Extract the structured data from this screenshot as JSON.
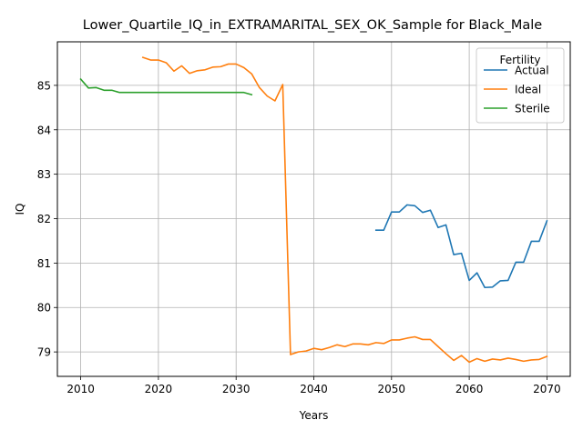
{
  "chart_data": {
    "type": "line",
    "title": "Lower_Quartile_IQ_in_EXTRAMARITAL_SEX_OK_Sample for Black_Male",
    "xlabel": "Years",
    "ylabel": "IQ",
    "xlim": [
      2007,
      2073
    ],
    "ylim": [
      78.45,
      85.98
    ],
    "xticks": [
      2010,
      2020,
      2030,
      2040,
      2050,
      2060,
      2070
    ],
    "yticks": [
      79,
      80,
      81,
      82,
      83,
      84,
      85
    ],
    "grid": true,
    "legend": {
      "title": "Fertility",
      "position": "top-right"
    },
    "series": [
      {
        "name": "Actual",
        "color": "#1f77b4",
        "x": [
          2048,
          2049,
          2050,
          2051,
          2052,
          2053,
          2054,
          2055,
          2056,
          2057,
          2058,
          2059,
          2060,
          2061,
          2062,
          2063,
          2064,
          2065,
          2066,
          2067,
          2068,
          2069,
          2070
        ],
        "y": [
          81.74,
          81.74,
          82.15,
          82.15,
          82.31,
          82.29,
          82.14,
          82.19,
          81.8,
          81.86,
          81.19,
          81.22,
          80.61,
          80.78,
          80.45,
          80.46,
          80.6,
          80.61,
          81.02,
          81.02,
          81.49,
          81.49,
          81.95
        ]
      },
      {
        "name": "Ideal",
        "color": "#ff7f0e",
        "x": [
          2018,
          2019,
          2020,
          2021,
          2022,
          2023,
          2024,
          2025,
          2026,
          2027,
          2028,
          2029,
          2030,
          2031,
          2032,
          2033,
          2034,
          2035,
          2036,
          2037,
          2038,
          2039,
          2040,
          2041,
          2042,
          2043,
          2044,
          2045,
          2046,
          2047,
          2048,
          2049,
          2050,
          2051,
          2052,
          2053,
          2054,
          2055,
          2056,
          2057,
          2058,
          2059,
          2060,
          2061,
          2062,
          2063,
          2064,
          2065,
          2066,
          2067,
          2068,
          2069,
          2070
        ],
        "y": [
          85.63,
          85.57,
          85.57,
          85.51,
          85.32,
          85.44,
          85.27,
          85.33,
          85.35,
          85.41,
          85.42,
          85.48,
          85.48,
          85.4,
          85.26,
          84.95,
          84.76,
          84.65,
          85.02,
          78.94,
          79.0,
          79.02,
          79.08,
          79.05,
          79.1,
          79.16,
          79.12,
          79.18,
          79.18,
          79.16,
          79.21,
          79.19,
          79.27,
          79.27,
          79.31,
          79.34,
          79.28,
          79.28,
          79.12,
          78.96,
          78.81,
          78.92,
          78.77,
          78.85,
          78.79,
          78.84,
          78.82,
          78.86,
          78.83,
          78.79,
          78.82,
          78.83,
          78.9
        ]
      },
      {
        "name": "Sterile",
        "color": "#2ca02c",
        "x": [
          2010,
          2011,
          2012,
          2013,
          2014,
          2015,
          2016,
          2017,
          2018,
          2019,
          2020,
          2021,
          2022,
          2023,
          2024,
          2025,
          2026,
          2027,
          2028,
          2029,
          2030,
          2031,
          2032
        ],
        "y": [
          85.14,
          84.94,
          84.95,
          84.89,
          84.89,
          84.84,
          84.84,
          84.84,
          84.84,
          84.84,
          84.84,
          84.84,
          84.84,
          84.84,
          84.84,
          84.84,
          84.84,
          84.84,
          84.84,
          84.84,
          84.84,
          84.84,
          84.79
        ]
      }
    ]
  }
}
